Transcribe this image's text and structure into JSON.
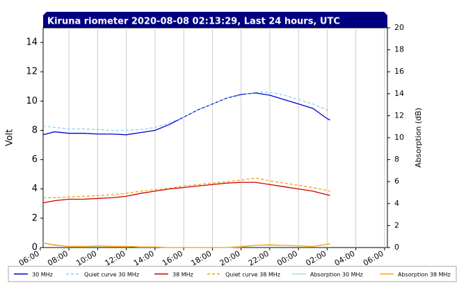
{
  "chart_data": {
    "type": "line",
    "title": "Kiruna riometer 2020-08-08 02:13:29, Last 24 hours, UTC",
    "ylabel": "Volt",
    "y2label": "Absorption (dB)",
    "x": [
      6.2,
      7,
      8,
      9,
      10,
      11,
      12,
      13,
      14,
      15,
      16,
      17,
      18,
      19,
      20,
      21,
      22,
      23,
      24,
      25,
      26,
      26.2
    ],
    "xlim": [
      6.2,
      30.2
    ],
    "xticks": [
      {
        "value": 6,
        "label": "06:00"
      },
      {
        "value": 8,
        "label": "08:00"
      },
      {
        "value": 10,
        "label": "10:00"
      },
      {
        "value": 12,
        "label": "12:00"
      },
      {
        "value": 14,
        "label": "14:00"
      },
      {
        "value": 16,
        "label": "16:00"
      },
      {
        "value": 18,
        "label": "18:00"
      },
      {
        "value": 20,
        "label": "20:00"
      },
      {
        "value": 22,
        "label": "22:00"
      },
      {
        "value": 24,
        "label": "00:00"
      },
      {
        "value": 26,
        "label": "02:00"
      },
      {
        "value": 28,
        "label": "04:00"
      },
      {
        "value": 30,
        "label": "06:00"
      }
    ],
    "ylim": [
      0,
      15
    ],
    "yticks": [
      0,
      2,
      4,
      6,
      8,
      10,
      12,
      14
    ],
    "y2lim": [
      0,
      20
    ],
    "y2ticks": [
      0,
      2,
      4,
      6,
      8,
      10,
      12,
      14,
      16,
      18,
      20
    ],
    "grid": true,
    "series": [
      {
        "name": "30 MHz",
        "color": "#0000cc",
        "style": "solid",
        "values": [
          7.7,
          7.9,
          7.8,
          7.8,
          7.75,
          7.75,
          7.7,
          7.85,
          8.0,
          8.4,
          8.9,
          9.4,
          9.8,
          10.2,
          10.45,
          10.55,
          10.4,
          10.1,
          9.8,
          9.5,
          8.8,
          8.7
        ]
      },
      {
        "name": "Quiet curve 30 MHz",
        "color": "#87cefa",
        "style": "dashed",
        "values": [
          8.3,
          8.2,
          8.1,
          8.1,
          8.05,
          8.0,
          8.0,
          8.05,
          8.2,
          8.5,
          8.9,
          9.4,
          9.8,
          10.2,
          10.4,
          10.6,
          10.6,
          10.4,
          10.1,
          9.8,
          9.4,
          9.3
        ]
      },
      {
        "name": "38 MHz",
        "color": "#cc0000",
        "style": "solid",
        "values": [
          3.05,
          3.2,
          3.3,
          3.3,
          3.35,
          3.4,
          3.5,
          3.7,
          3.85,
          4.0,
          4.1,
          4.2,
          4.3,
          4.4,
          4.45,
          4.45,
          4.3,
          4.15,
          4.0,
          3.85,
          3.6,
          3.55
        ]
      },
      {
        "name": "Quiet curve 38 MHz",
        "color": "#ff9900",
        "style": "dashed",
        "values": [
          3.4,
          3.4,
          3.45,
          3.5,
          3.55,
          3.6,
          3.7,
          3.85,
          3.95,
          4.05,
          4.2,
          4.3,
          4.4,
          4.5,
          4.6,
          4.75,
          4.55,
          4.4,
          4.25,
          4.1,
          3.9,
          3.85
        ]
      },
      {
        "name": "Absorption 30 MHz",
        "color": "#add8e6",
        "style": "solid",
        "axis": "y2",
        "values": [
          0.4,
          0.2,
          0.1,
          0.1,
          0.1,
          0.1,
          0.1,
          0.05,
          0.05,
          0,
          0,
          0,
          0,
          0,
          0.05,
          0.2,
          0.2,
          0.2,
          0.15,
          0.1,
          0.3,
          0.3
        ]
      },
      {
        "name": "Absorption 38 MHz",
        "color": "#ffa500",
        "style": "solid",
        "axis": "y2",
        "values": [
          0.4,
          0.25,
          0.1,
          0.1,
          0.15,
          0.1,
          0.1,
          0.05,
          0.05,
          0,
          0,
          0,
          0,
          0,
          0.1,
          0.2,
          0.25,
          0.2,
          0.15,
          0.1,
          0.3,
          0.35
        ]
      }
    ]
  }
}
